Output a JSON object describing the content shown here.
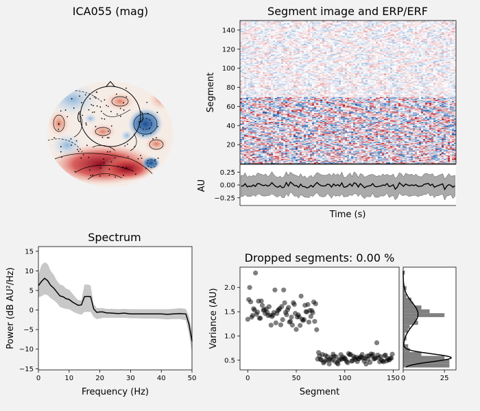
{
  "colors": {
    "figure_bg": "#f2f2f2",
    "axes_bg": "#ffffff",
    "red": "#c8202f",
    "blue": "#1f5fa8",
    "band": "#9b9b9b",
    "line": "#000000",
    "spectrum_band": "#c8c8c8"
  },
  "chart_data": [
    {
      "id": "topomap",
      "type": "heatmap",
      "title": "ICA055 (mag)"
    },
    {
      "id": "segment_image",
      "type": "heatmap",
      "title": "Segment image and ERP/ERF",
      "ylabel": "Segment",
      "ylim": [
        0,
        150
      ],
      "yticks": [
        "20",
        "40",
        "60",
        "80",
        "100",
        "120",
        "140"
      ],
      "ytick_values": [
        20,
        40,
        60,
        80,
        100,
        120,
        140
      ],
      "note": "Segments 0-70 show larger amplitude (strong red/blue striping); segments 70-150 are mostly pale."
    },
    {
      "id": "erp",
      "type": "line",
      "xlabel": "Time (s)",
      "ylabel": "AU",
      "ylim": [
        -0.4,
        0.4
      ],
      "yticks": [
        "0.25",
        "0.00",
        "−0.25"
      ],
      "ytick_values": [
        0.25,
        0.0,
        -0.25
      ],
      "band_halfwidth_au": 0.18
    },
    {
      "id": "spectrum",
      "type": "line",
      "title": "Spectrum",
      "xlabel": "Frequency (Hz)",
      "ylabel": "Power (dB AU²/Hz)",
      "xlim": [
        0,
        50
      ],
      "ylim": [
        -15.3,
        16.2
      ],
      "xticks": [
        "0",
        "10",
        "20",
        "30",
        "40",
        "50"
      ],
      "xtick_values": [
        0,
        10,
        20,
        30,
        40,
        50
      ],
      "yticks": [
        "15",
        "10",
        "5",
        "0",
        "−5",
        "−10",
        "−15"
      ],
      "ytick_values": [
        15,
        10,
        5,
        0,
        -5,
        -10,
        -15
      ],
      "x": [
        0,
        1,
        2,
        3,
        4,
        5,
        6,
        7,
        8,
        9,
        10,
        11,
        12,
        13,
        14,
        15,
        16,
        17,
        18,
        19,
        20,
        21,
        22,
        24,
        26,
        28,
        30,
        32,
        34,
        36,
        38,
        40,
        42,
        44,
        46,
        48,
        49,
        50
      ],
      "mean": [
        6.2,
        7.3,
        8.1,
        7.5,
        6.3,
        5.6,
        4.6,
        3.6,
        3.4,
        2.9,
        2.7,
        2.1,
        1.6,
        1.2,
        1.3,
        3.4,
        3.5,
        3.4,
        0.3,
        -0.6,
        -0.5,
        -0.5,
        -0.7,
        -0.8,
        -0.9,
        -0.8,
        -1.0,
        -1.0,
        -1.0,
        -1.0,
        -1.0,
        -1.0,
        -1.1,
        -1.0,
        -0.9,
        -1.0,
        -3.5,
        -8.0
      ],
      "upper": [
        9.0,
        11.5,
        12.2,
        11.8,
        10.0,
        9.0,
        7.5,
        6.5,
        6.3,
        5.5,
        5.2,
        4.3,
        3.3,
        2.5,
        2.5,
        6.5,
        6.5,
        6.3,
        1.5,
        0.5,
        0.5,
        0.5,
        0.3,
        0.3,
        0.2,
        0.3,
        0.2,
        0.2,
        0.2,
        0.2,
        0.2,
        0.2,
        0.2,
        0.3,
        0.5,
        0.3,
        -1.5,
        -5.5
      ],
      "lower": [
        3.3,
        3.5,
        4.0,
        3.8,
        3.0,
        2.5,
        1.8,
        0.8,
        0.5,
        0.3,
        0.2,
        -0.3,
        -0.7,
        -1.0,
        -1.2,
        -0.5,
        -0.5,
        -0.5,
        -1.8,
        -2.3,
        -2.2,
        -2.0,
        -2.0,
        -2.0,
        -2.0,
        -2.0,
        -2.1,
        -2.1,
        -2.2,
        -2.2,
        -2.2,
        -2.3,
        -2.4,
        -2.3,
        -2.3,
        -2.6,
        -6.0,
        -11.0
      ]
    },
    {
      "id": "dropped",
      "type": "scatter",
      "title": "Dropped segments: 0.00 %",
      "xlabel": "Segment",
      "ylabel": "Variance (AU)",
      "xlim": [
        -8,
        156
      ],
      "ylim": [
        0.3,
        2.42
      ],
      "xticks": [
        "0",
        "50",
        "100",
        "150"
      ],
      "xtick_values": [
        0,
        50,
        100,
        150
      ],
      "yticks": [
        "0.5",
        "1.0",
        "1.5",
        "2.0"
      ],
      "ytick_values": [
        0.5,
        1.0,
        1.5,
        2.0
      ],
      "note": "Segments 0-70 have variance around 1.0-2.3; segments 70-150 have variance around 0.4-0.85."
    },
    {
      "id": "variance_hist",
      "type": "bar",
      "xlim": [
        0,
        32
      ],
      "xticks": [
        "0",
        "25"
      ],
      "xtick_values": [
        0,
        25
      ],
      "ylim": [
        0.3,
        2.42
      ],
      "bin_edges": [
        0.35,
        0.43,
        0.51,
        0.59,
        0.67,
        0.75,
        0.83,
        0.91,
        0.99,
        1.07,
        1.15,
        1.23,
        1.31,
        1.39,
        1.47,
        1.55,
        1.63,
        1.71,
        1.79,
        1.87,
        1.95,
        2.03,
        2.11,
        2.19,
        2.27,
        2.35
      ],
      "counts": [
        28,
        28,
        25,
        11,
        4,
        3,
        0,
        2,
        1,
        3,
        4,
        9,
        8,
        25,
        16,
        11,
        6,
        5,
        2,
        1,
        2,
        0,
        0,
        0,
        1
      ],
      "kde_peak_count": 29
    }
  ]
}
